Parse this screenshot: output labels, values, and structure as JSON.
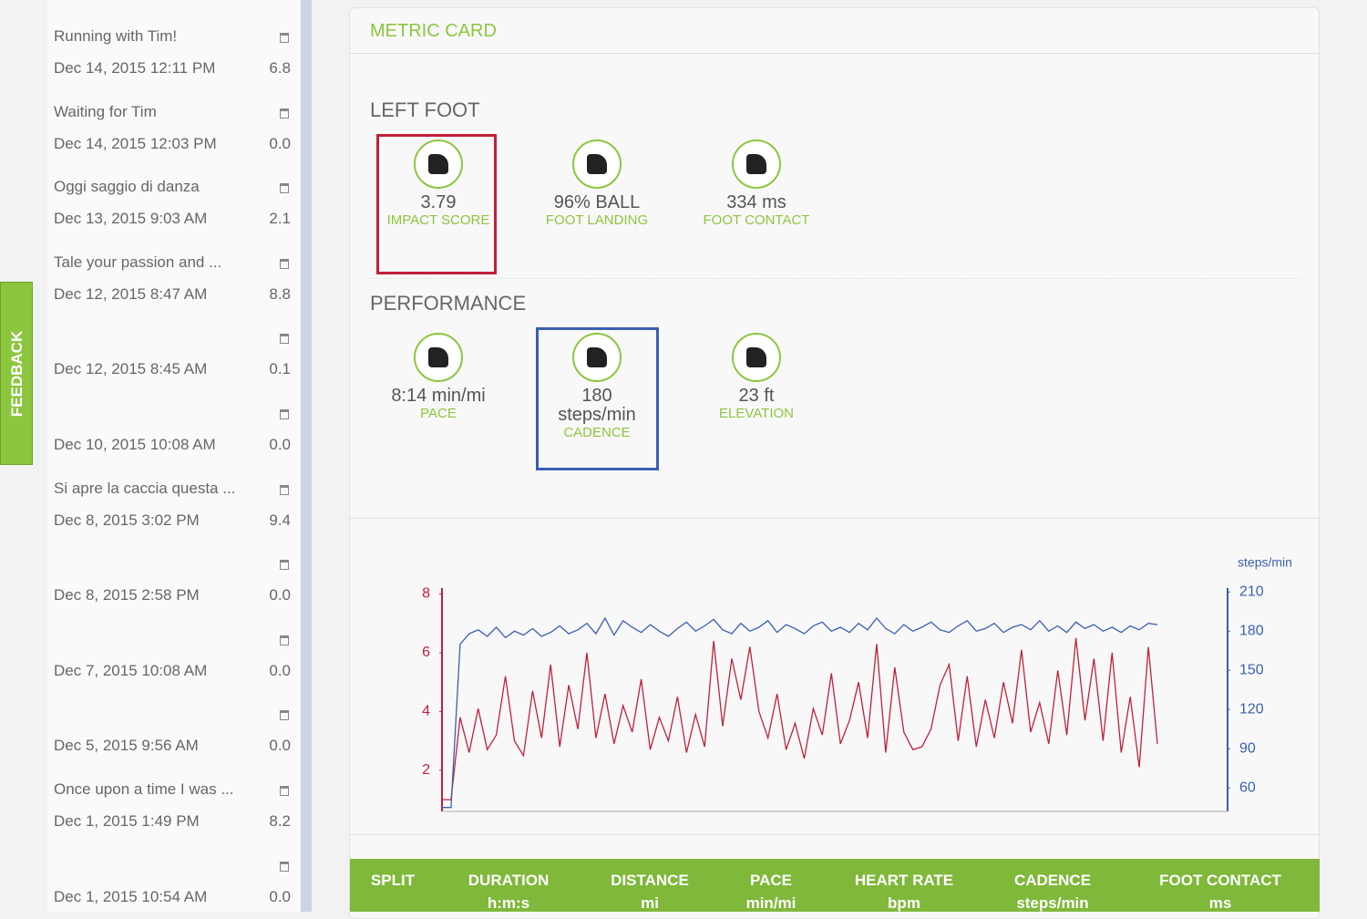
{
  "sidebar": {
    "activities": [
      {
        "title": "Running with Tim!",
        "date": "Dec 14, 2015 12:11 PM",
        "score": "6.8"
      },
      {
        "title": "Waiting for Tim",
        "date": "Dec 14, 2015 12:03 PM",
        "score": "0.0"
      },
      {
        "title": "Oggi saggio di danza",
        "date": "Dec 13, 2015 9:03 AM",
        "score": "2.1"
      },
      {
        "title": "Tale your passion and ...",
        "date": "Dec 12, 2015 8:47 AM",
        "score": "8.8"
      },
      {
        "date": "Dec 12, 2015 8:45 AM",
        "score": "0.1"
      },
      {
        "date": "Dec 10, 2015 10:08 AM",
        "score": "0.0"
      },
      {
        "title": "Si apre la caccia questa ...",
        "date": "Dec 8, 2015 3:02 PM",
        "score": "9.4"
      },
      {
        "date": "Dec 8, 2015 2:58 PM",
        "score": "0.0"
      },
      {
        "date": "Dec 7, 2015 10:08 AM",
        "score": "0.0"
      },
      {
        "date": "Dec 5, 2015 9:56 AM",
        "score": "0.0"
      },
      {
        "title": "Once upon a time I was ...",
        "date": "Dec 1, 2015 1:49 PM",
        "score": "8.2"
      },
      {
        "date": "Dec 1, 2015 10:54 AM",
        "score": "0.0"
      }
    ]
  },
  "feedback": "FEEDBACK",
  "card": {
    "title": "METRIC CARD",
    "sections": [
      {
        "title": "LEFT FOOT",
        "metrics": [
          {
            "value": "3.79",
            "label": "IMPACT SCORE"
          },
          {
            "value": "96% BALL",
            "label": "FOOT LANDING"
          },
          {
            "value": "334 ms",
            "label": "FOOT CONTACT"
          }
        ]
      },
      {
        "title": "PERFORMANCE",
        "metrics": [
          {
            "value": "8:14 min/mi",
            "label": "PACE"
          },
          {
            "value": "180 steps/min",
            "label": "CADENCE"
          },
          {
            "value": "23 ft",
            "label": "ELEVATION"
          }
        ]
      }
    ]
  },
  "chart_data": {
    "type": "line",
    "y2_label": "steps/min",
    "ylim": [
      0.6,
      8.2
    ],
    "yticks": [
      2,
      4,
      6,
      8
    ],
    "y2lim": [
      42,
      213
    ],
    "y2ticks": [
      60,
      90,
      120,
      150,
      180,
      210
    ],
    "series": [
      {
        "color": "#c0203a",
        "values": [
          1.0,
          1.0,
          3.8,
          2.6,
          4.1,
          2.7,
          3.2,
          5.2,
          3.0,
          2.5,
          4.7,
          3.1,
          5.6,
          2.8,
          4.9,
          3.4,
          6.0,
          3.1,
          4.6,
          2.9,
          4.2,
          3.3,
          5.1,
          2.7,
          3.8,
          3.0,
          4.5,
          2.6,
          3.9,
          2.8,
          6.4,
          3.5,
          5.8,
          4.4,
          6.2,
          4.0,
          3.1,
          4.6,
          2.7,
          3.6,
          2.4,
          4.1,
          3.2,
          5.3,
          2.9,
          3.7,
          5.0,
          3.1,
          6.3,
          2.6,
          5.5,
          3.3,
          2.7,
          2.8,
          3.4,
          4.9,
          5.6,
          3.0,
          5.2,
          2.8,
          4.4,
          3.1,
          5.0,
          3.6,
          6.1,
          3.3,
          4.3,
          2.9,
          5.4,
          3.2,
          6.5,
          3.7,
          5.8,
          3.0,
          6.0,
          2.6,
          4.5,
          2.1,
          6.2,
          2.9
        ]
      },
      {
        "color": "#3a5fb0",
        "axis": "y2",
        "values": [
          45,
          45,
          170,
          178,
          181,
          176,
          183,
          175,
          180,
          177,
          182,
          176,
          179,
          184,
          178,
          181,
          186,
          178,
          190,
          177,
          188,
          183,
          179,
          185,
          180,
          176,
          182,
          187,
          180,
          184,
          189,
          181,
          178,
          186,
          180,
          183,
          188,
          179,
          185,
          182,
          178,
          184,
          187,
          180,
          183,
          179,
          186,
          181,
          190,
          182,
          178,
          185,
          180,
          183,
          187,
          181,
          179,
          184,
          188,
          180,
          182,
          186,
          179,
          183,
          185,
          181,
          188,
          180,
          184,
          179,
          187,
          182,
          185,
          180,
          183,
          179,
          184,
          181,
          186,
          185
        ]
      }
    ]
  },
  "table": {
    "columns": [
      {
        "name": "SPLIT"
      },
      {
        "name": "DURATION",
        "unit": "h:m:s"
      },
      {
        "name": "DISTANCE",
        "unit": "mi"
      },
      {
        "name": "PACE",
        "unit": "min/mi"
      },
      {
        "name": "HEART RATE",
        "unit": "bpm"
      },
      {
        "name": "CADENCE",
        "unit": "steps/min"
      },
      {
        "name": "FOOT CONTACT",
        "unit": "ms"
      }
    ]
  }
}
